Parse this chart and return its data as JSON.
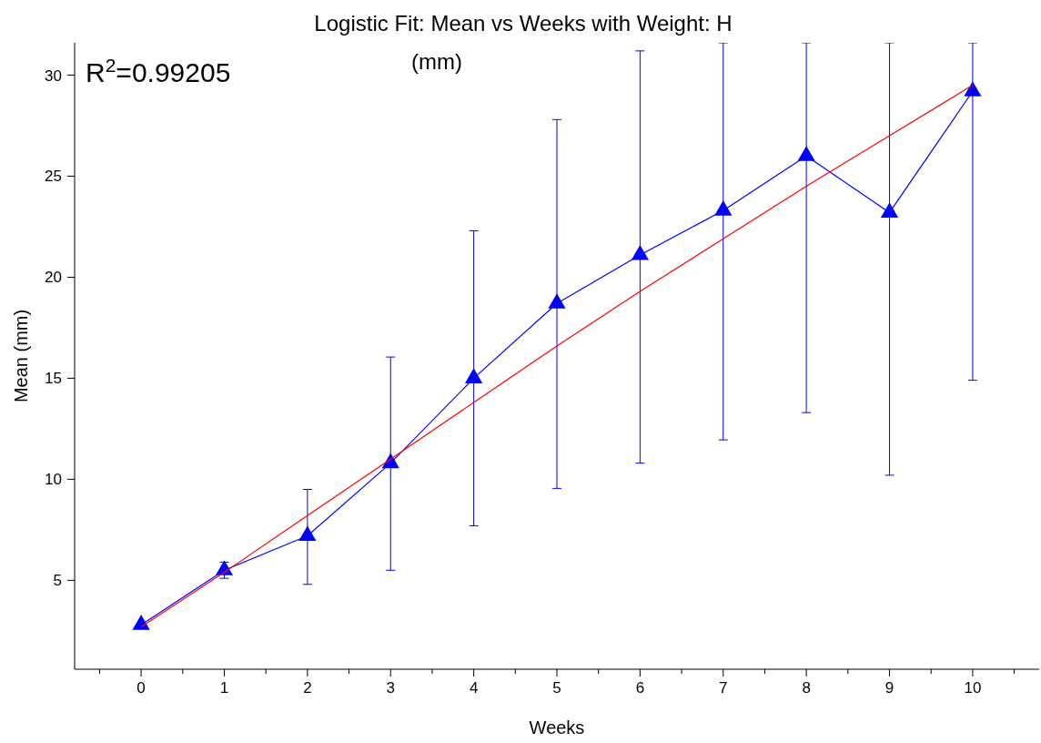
{
  "chart_data": {
    "type": "line",
    "title": "Logistic Fit: Mean vs Weeks with Weight: H",
    "subtitle": "(mm)",
    "xlabel": "Weeks",
    "ylabel": "Mean (mm)",
    "annotations": [
      "R$^{2}$=0.99205"
    ],
    "x": [
      0,
      1,
      2,
      3,
      4,
      5,
      6,
      7,
      8,
      9,
      10
    ],
    "series": [
      {
        "color": "#0000ff",
        "values": [
          2.8,
          5.5,
          7.2,
          10.8,
          15.0,
          18.7,
          21.1,
          23.3,
          26.0,
          23.2,
          29.2
        ],
        "marker": "triangle",
        "errors": [
          null,
          [
            5.1,
            5.9
          ],
          [
            4.8,
            9.5
          ],
          [
            5.5,
            16.05
          ],
          [
            7.7,
            22.3
          ],
          [
            9.55,
            27.8
          ],
          [
            10.8,
            31.2
          ],
          [
            11.95,
            31.6
          ],
          [
            13.3,
            31.6
          ],
          [
            10.2,
            31.6
          ],
          [
            14.9,
            31.6
          ]
        ]
      },
      {
        "color": "#ff0000",
        "values": [
          2.7,
          5.4,
          8.2,
          11.0,
          13.8,
          16.6,
          19.3,
          21.9,
          24.5,
          27.0,
          29.5
        ],
        "marker": "none"
      }
    ],
    "xlim": [
      -0.8,
      10.8
    ],
    "ylim": [
      0.6,
      31.6
    ],
    "xticks": [
      {
        "value": -0.5,
        "label": null
      },
      0,
      {
        "value": 0.5,
        "label": null
      },
      1,
      {
        "value": 1.5,
        "label": null
      },
      2,
      {
        "value": 2.5,
        "label": null
      },
      3,
      {
        "value": 3.5,
        "label": null
      },
      4,
      {
        "value": 4.5,
        "label": null
      },
      5,
      {
        "value": 5.5,
        "label": null
      },
      6,
      {
        "value": 6.5,
        "label": null
      },
      7,
      {
        "value": 7.5,
        "label": null
      },
      8,
      {
        "value": 8.5,
        "label": null
      },
      9,
      {
        "value": 9.5,
        "label": null
      },
      10,
      {
        "value": 10.5,
        "label": null
      }
    ],
    "yticks": [
      5,
      10,
      15,
      20,
      25,
      30
    ],
    "grid": false
  }
}
